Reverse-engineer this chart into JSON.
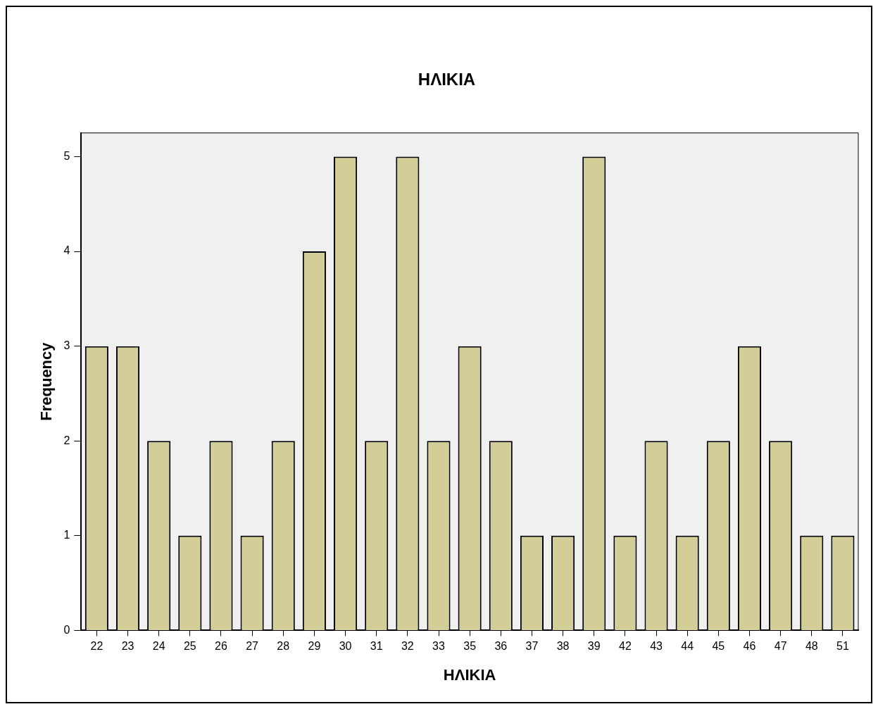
{
  "chart_data": {
    "type": "bar",
    "title": "ΗΛΙΚΙΑ",
    "xlabel": "ΗΛΙΚΙΑ",
    "ylabel": "Frequency",
    "categories": [
      "22",
      "23",
      "24",
      "25",
      "26",
      "27",
      "28",
      "29",
      "30",
      "31",
      "32",
      "33",
      "35",
      "36",
      "37",
      "38",
      "39",
      "42",
      "43",
      "44",
      "45",
      "46",
      "47",
      "48",
      "51"
    ],
    "values": [
      3,
      3,
      2,
      1,
      2,
      1,
      2,
      4,
      5,
      2,
      5,
      2,
      3,
      2,
      1,
      1,
      5,
      1,
      2,
      1,
      2,
      3,
      2,
      1,
      1
    ],
    "color": "#d3ce97",
    "ylim": [
      0,
      5.25
    ],
    "yticks": [
      0,
      1,
      2,
      3,
      4,
      5
    ]
  }
}
